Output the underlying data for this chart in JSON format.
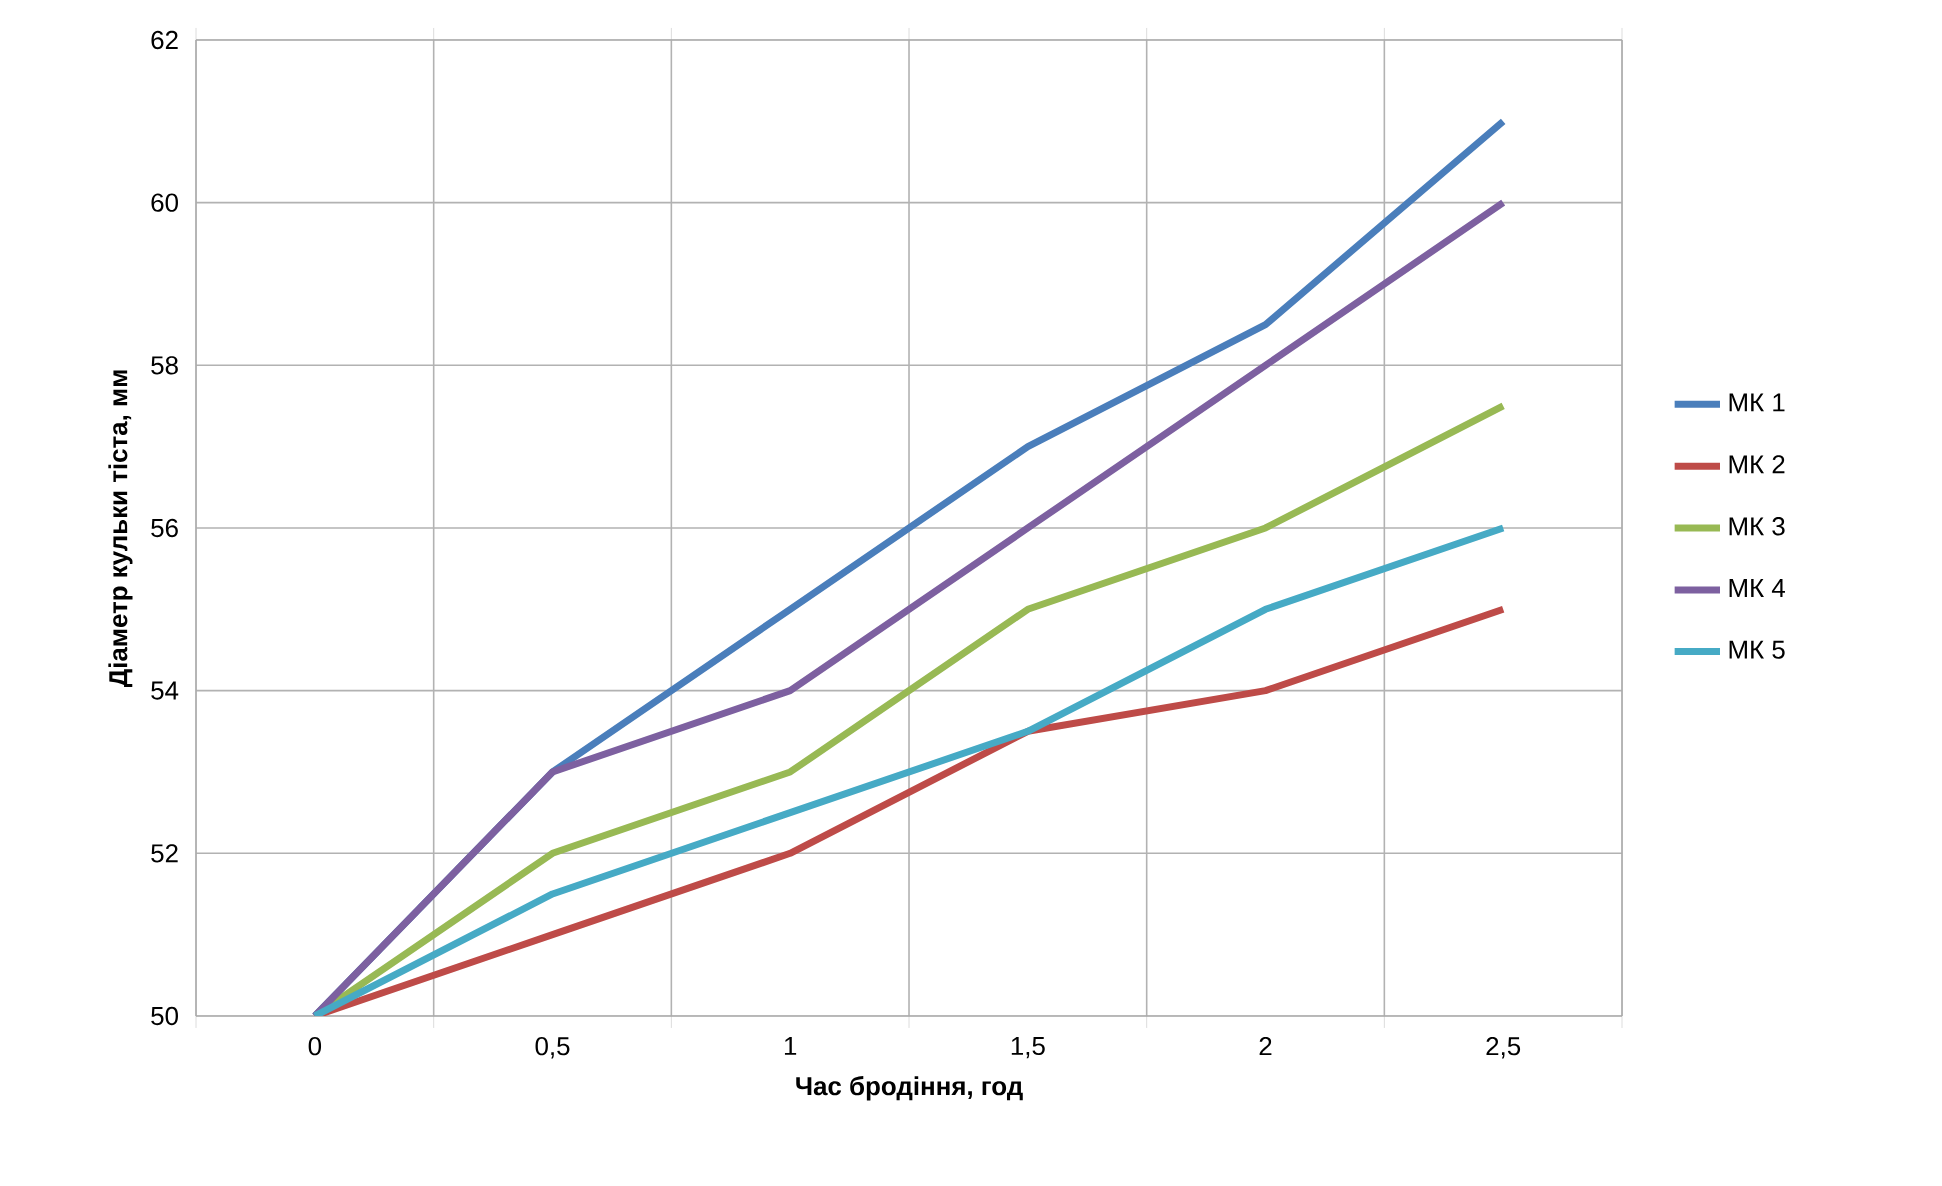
{
  "chart_data": {
    "type": "line",
    "xlabel": "Час бродіння, год",
    "ylabel": "Діаметр кульки тіста, мм",
    "categories": [
      "0",
      "0,5",
      "1",
      "1,5",
      "2",
      "2,5"
    ],
    "series": [
      {
        "name": "МК 1",
        "color": "#4a7ebb",
        "values": [
          50,
          53,
          55,
          57,
          58.5,
          61
        ]
      },
      {
        "name": "МК 2",
        "color": "#be4b48",
        "values": [
          50,
          51,
          52,
          53.5,
          54,
          55
        ]
      },
      {
        "name": "МК 3",
        "color": "#98b954",
        "values": [
          50,
          52,
          53,
          55,
          56,
          57.5
        ]
      },
      {
        "name": "МК 4",
        "color": "#7d60a0",
        "values": [
          50,
          53,
          54,
          56,
          58,
          60
        ]
      },
      {
        "name": "МК 5",
        "color": "#46aac5",
        "values": [
          50,
          51.5,
          52.5,
          53.5,
          55,
          56
        ]
      }
    ],
    "ylim": [
      50,
      62
    ],
    "yticks": [
      50,
      52,
      54,
      56,
      58,
      60,
      62
    ],
    "grid": true,
    "legend": "right",
    "marker": "none",
    "line_style": "solid"
  }
}
